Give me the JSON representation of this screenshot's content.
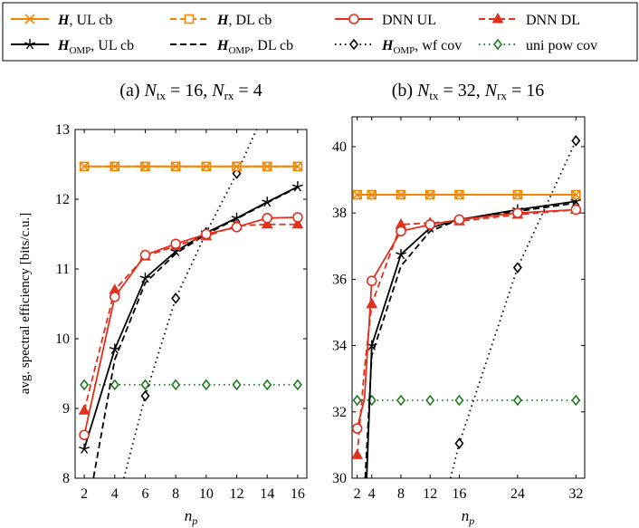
{
  "legend": {
    "items": [
      {
        "label": "H, UL cb",
        "color": "#f28500",
        "dash": "",
        "marker": "x"
      },
      {
        "label": "H, DL cb",
        "color": "#f28500",
        "dash": "7,4",
        "marker": "square"
      },
      {
        "label": "DNN UL",
        "color": "#e0301e",
        "dash": "",
        "marker": "circle"
      },
      {
        "label": "DNN DL",
        "color": "#e0301e",
        "dash": "7,4",
        "marker": "triangle"
      },
      {
        "label": "H_OMP, UL cb",
        "color": "#000000",
        "dash": "",
        "marker": "star"
      },
      {
        "label": "H_OMP, DL cb",
        "color": "#000000",
        "dash": "7,4",
        "marker": "none"
      },
      {
        "label": "H_OMP, wf cov",
        "color": "#000000",
        "dash": "1.5,4",
        "marker": "diamond"
      },
      {
        "label": "uni pow cov",
        "color": "#1f7a1f",
        "dash": "1.5,4",
        "marker": "diamond"
      }
    ]
  },
  "chart_data": [
    {
      "type": "line",
      "title": "(a) N_tx = 16, N_rx = 4",
      "xlabel": "n_p",
      "ylabel": "avg. spectral efficiency [bits/c.u.]",
      "xlim": [
        1.4,
        16.6
      ],
      "ylim": [
        8,
        13
      ],
      "xticks": [
        2,
        4,
        6,
        8,
        10,
        12,
        14,
        16
      ],
      "yticks": [
        8,
        9,
        10,
        11,
        12,
        13
      ],
      "series": [
        {
          "name": "H, UL cb",
          "x": [
            2,
            4,
            6,
            8,
            10,
            12,
            14,
            16
          ],
          "y": [
            12.47,
            12.47,
            12.47,
            12.47,
            12.47,
            12.47,
            12.47,
            12.47
          ]
        },
        {
          "name": "H, DL cb",
          "x": [
            2,
            4,
            6,
            8,
            10,
            12,
            14,
            16
          ],
          "y": [
            12.47,
            12.47,
            12.47,
            12.47,
            12.47,
            12.47,
            12.47,
            12.47
          ]
        },
        {
          "name": "DNN UL",
          "x": [
            2,
            4,
            6,
            8,
            10,
            12,
            14,
            16
          ],
          "y": [
            8.62,
            10.6,
            11.2,
            11.36,
            11.5,
            11.6,
            11.73,
            11.74
          ]
        },
        {
          "name": "DNN DL",
          "x": [
            2,
            4,
            6,
            8,
            10,
            12,
            14,
            16
          ],
          "y": [
            8.97,
            10.7,
            11.18,
            11.33,
            11.47,
            11.62,
            11.64,
            11.64
          ]
        },
        {
          "name": "H_OMP, UL cb",
          "x": [
            2,
            4,
            6,
            8,
            10,
            12,
            14,
            16
          ],
          "y": [
            8.42,
            9.85,
            10.87,
            11.25,
            11.52,
            11.73,
            11.96,
            12.18
          ]
        },
        {
          "name": "H_OMP, DL cb",
          "x": [
            2,
            2.6,
            4,
            6,
            8,
            10,
            12,
            14,
            16
          ],
          "y": [
            7.6,
            8.0,
            9.7,
            10.8,
            11.22,
            11.5,
            11.72,
            11.95,
            12.17
          ]
        },
        {
          "name": "H_OMP, wf cov",
          "x": [
            4.6,
            6,
            8,
            10,
            12,
            13.3
          ],
          "y": [
            8.0,
            9.18,
            10.58,
            11.52,
            12.37,
            13.0
          ]
        },
        {
          "name": "uni pow cov",
          "x": [
            2,
            4,
            6,
            8,
            10,
            12,
            14,
            16
          ],
          "y": [
            9.34,
            9.34,
            9.34,
            9.34,
            9.34,
            9.34,
            9.34,
            9.34
          ]
        }
      ]
    },
    {
      "type": "line",
      "title": "(b) N_tx = 32, N_rx = 16",
      "xlabel": "n_p",
      "ylabel": "",
      "xlim": [
        1.3,
        33.2
      ],
      "ylim": [
        30,
        40.9
      ],
      "xticks": [
        2,
        4,
        8,
        12,
        16,
        24,
        32
      ],
      "yticks": [
        30,
        32,
        34,
        36,
        38,
        40
      ],
      "series": [
        {
          "name": "H, UL cb",
          "x": [
            2,
            4,
            8,
            12,
            16,
            24,
            32
          ],
          "y": [
            38.55,
            38.55,
            38.55,
            38.55,
            38.55,
            38.55,
            38.55
          ]
        },
        {
          "name": "H, DL cb",
          "x": [
            2,
            4,
            8,
            12,
            16,
            24,
            32
          ],
          "y": [
            38.55,
            38.55,
            38.55,
            38.55,
            38.55,
            38.55,
            38.55
          ]
        },
        {
          "name": "DNN UL",
          "x": [
            2,
            3,
            4,
            8,
            12,
            16,
            24,
            32
          ],
          "y": [
            31.5,
            32.4,
            35.95,
            37.45,
            37.65,
            37.8,
            38.0,
            38.1
          ]
        },
        {
          "name": "DNN DL",
          "x": [
            2,
            3,
            4,
            8,
            12,
            16,
            24,
            32
          ],
          "y": [
            30.7,
            33.3,
            35.25,
            37.65,
            37.7,
            37.75,
            37.95,
            38.1
          ]
        },
        {
          "name": "H_OMP, UL cb",
          "x": [
            3.3,
            4,
            8,
            12,
            16,
            24,
            32
          ],
          "y": [
            30.0,
            34.0,
            36.75,
            37.55,
            37.8,
            38.1,
            38.35
          ]
        },
        {
          "name": "H_OMP, DL cb",
          "x": [
            3.1,
            4,
            8,
            12,
            16,
            24,
            32
          ],
          "y": [
            30.0,
            33.7,
            36.4,
            37.45,
            37.8,
            38.05,
            38.3
          ]
        },
        {
          "name": "H_OMP, wf cov",
          "x": [
            14.8,
            16,
            24,
            32
          ],
          "y": [
            30.0,
            31.05,
            36.35,
            40.18
          ]
        },
        {
          "name": "uni pow cov",
          "x": [
            2,
            4,
            8,
            12,
            16,
            24,
            32
          ],
          "y": [
            32.35,
            32.35,
            32.35,
            32.35,
            32.35,
            32.35,
            32.35
          ]
        }
      ]
    }
  ]
}
